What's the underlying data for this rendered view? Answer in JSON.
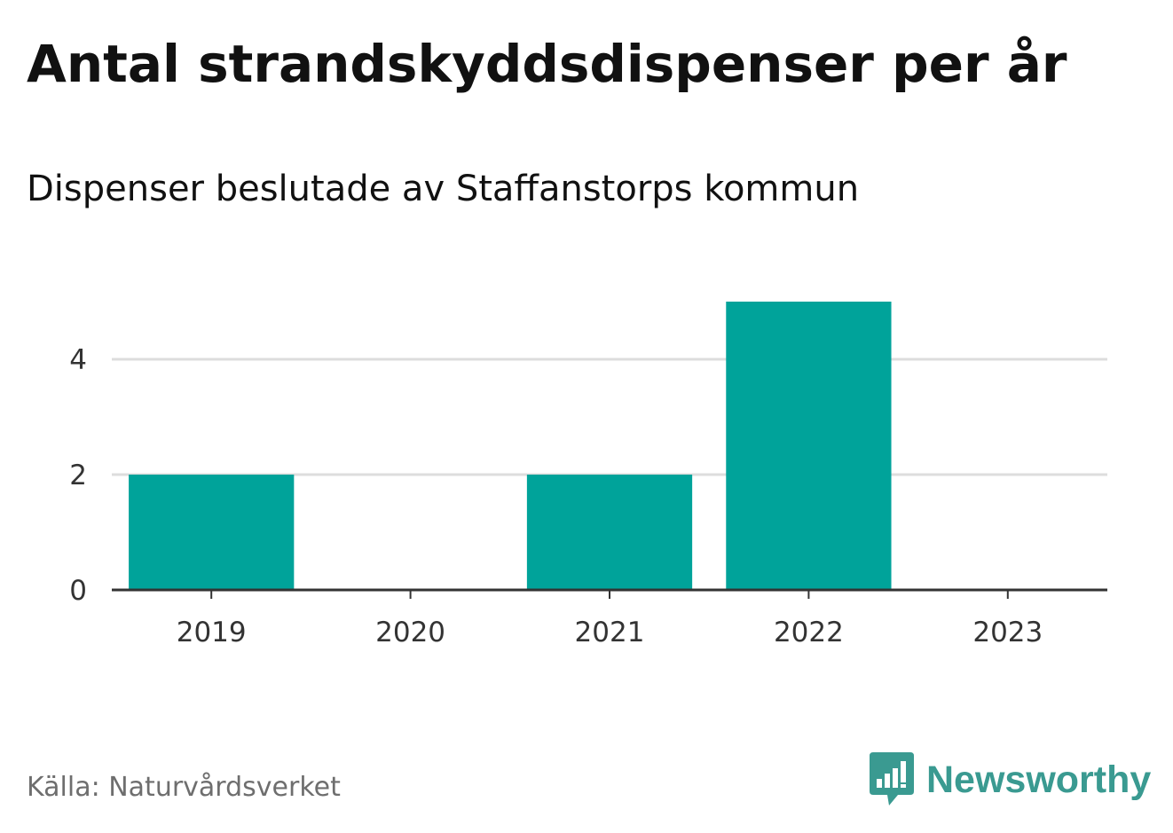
{
  "chart_data": {
    "type": "bar",
    "title": "Antal strandskyddsdispenser per år",
    "subtitle": "Dispenser beslutade av Staffanstorps kommun",
    "categories": [
      "2019",
      "2020",
      "2021",
      "2022",
      "2023"
    ],
    "values": [
      2,
      0,
      2,
      5,
      0
    ],
    "y_ticks": [
      "0",
      "2",
      "4"
    ],
    "ylim": [
      0,
      5
    ],
    "grid": true,
    "xlabel": "",
    "ylabel": "",
    "bar_color": "#00a39a"
  },
  "footer": {
    "source": "Källa: Naturvårdsverket",
    "brand": "Newsworthy",
    "brand_color": "#3a9a91"
  }
}
